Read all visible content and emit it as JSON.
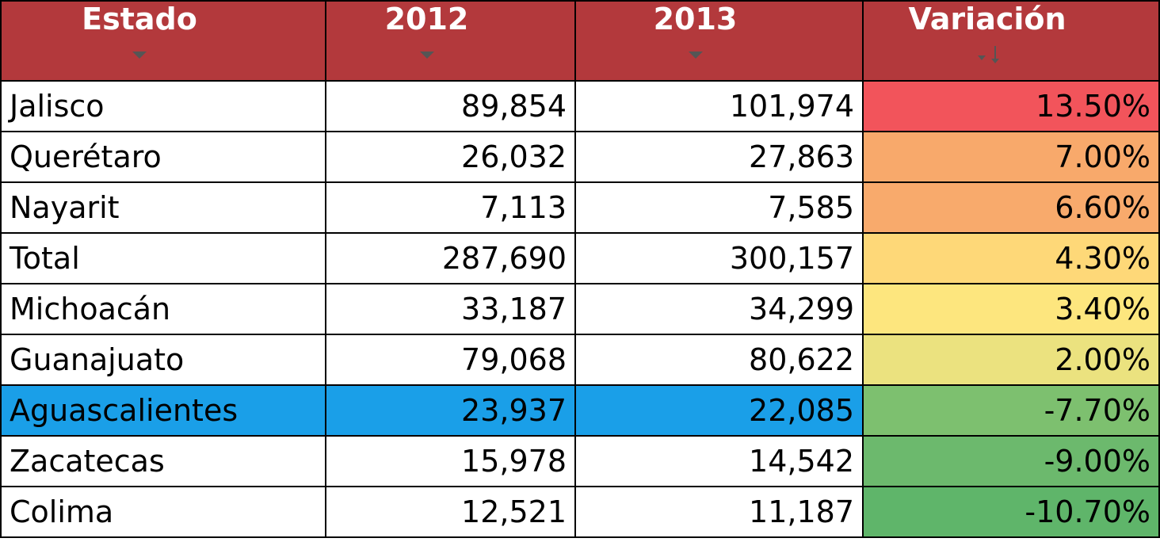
{
  "table": {
    "columns": [
      "Estado",
      "2012",
      "2013",
      "Variación"
    ],
    "rows": [
      [
        "Jalisco",
        "89,854",
        "101,974",
        "13.50%"
      ],
      [
        "Querétaro",
        "26,032",
        "27,863",
        "7.00%"
      ],
      [
        "Nayarit",
        "7,113",
        "7,585",
        "6.60%"
      ],
      [
        "Total",
        "287,690",
        "300,157",
        "4.30%"
      ],
      [
        "Michoacán",
        "33,187",
        "34,299",
        "3.40%"
      ],
      [
        "Guanajuato",
        "79,068",
        "80,622",
        "2.00%"
      ],
      [
        "Aguascalientes",
        "23,937",
        "22,085",
        "-7.70%"
      ],
      [
        "Zacatecas",
        "15,978",
        "14,542",
        "-9.00%"
      ],
      [
        "Colima",
        "12,521",
        "11,187",
        "-10.70%"
      ]
    ]
  }
}
